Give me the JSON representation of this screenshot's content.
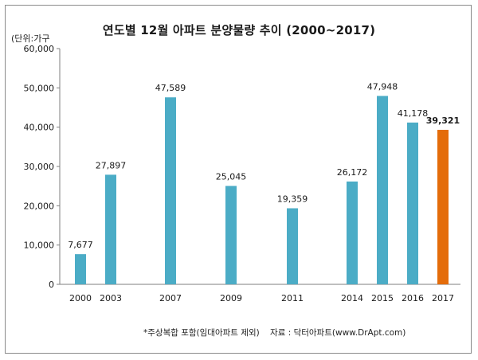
{
  "chart_data": {
    "type": "bar",
    "title": "연도별  12월 아파트 분양물량 추이 (2000~2017)",
    "unit_label": "(단위:가구",
    "categories": [
      "2000",
      "2003",
      "2007",
      "2009",
      "2011",
      "2014",
      "2015",
      "2016",
      "2017"
    ],
    "values": [
      7677,
      27897,
      47589,
      25045,
      19359,
      26172,
      47948,
      41178,
      39321
    ],
    "value_labels": [
      "7,677",
      "27,897",
      "47,589",
      "25,045",
      "19,359",
      "26,172",
      "47,948",
      "41,178",
      "39,321"
    ],
    "highlight_index": 8,
    "ylim": [
      0,
      60000
    ],
    "yticks": [
      "0",
      "10,000",
      "20,000",
      "30,000",
      "40,000",
      "50,000",
      "60,000"
    ],
    "grid": false,
    "colors": {
      "bar": "#4bacc6",
      "highlight": "#e46c0a",
      "axis": "#7f7f7f"
    },
    "footnote": "*주상복합 포함(임대아파트 제외)    자료 : 닥터아파트(www.DrApt.com)"
  }
}
